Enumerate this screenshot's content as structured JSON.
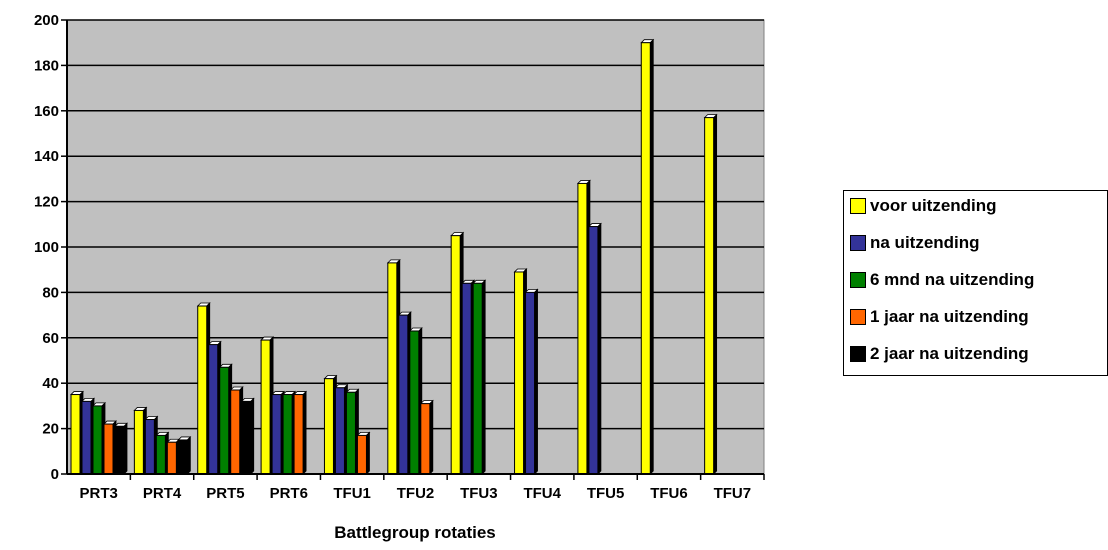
{
  "chart_data": {
    "type": "bar",
    "xlabel": "Battlegroup rotaties",
    "ylabel": "",
    "ylim": [
      0,
      200
    ],
    "yticks": [
      0,
      20,
      40,
      60,
      80,
      100,
      120,
      140,
      160,
      180,
      200
    ],
    "grid": true,
    "legend_position": "right",
    "categories": [
      "PRT3",
      "PRT4",
      "PRT5",
      "PRT6",
      "TFU1",
      "TFU2",
      "TFU3",
      "TFU4",
      "TFU5",
      "TFU6",
      "TFU7"
    ],
    "series": [
      {
        "name": "voor uitzending",
        "color": "#ffff00",
        "values": [
          35,
          28,
          74,
          59,
          42,
          93,
          105,
          89,
          128,
          190,
          157
        ]
      },
      {
        "name": "na uitzending",
        "color": "#333399",
        "values": [
          32,
          24,
          57,
          35,
          38,
          70,
          84,
          80,
          109,
          null,
          null
        ]
      },
      {
        "name": "6 mnd na uitzending",
        "color": "#008000",
        "values": [
          30,
          17,
          47,
          35,
          36,
          63,
          84,
          null,
          null,
          null,
          null
        ]
      },
      {
        "name": "1 jaar na uitzending",
        "color": "#ff6600",
        "values": [
          22,
          14,
          37,
          35,
          17,
          31,
          null,
          null,
          null,
          null,
          null
        ]
      },
      {
        "name": "2 jaar na uitzending",
        "color": "#000000",
        "values": [
          21,
          15,
          32,
          null,
          null,
          null,
          null,
          null,
          null,
          null,
          null
        ]
      }
    ],
    "plot_background": "#c0c0c0"
  }
}
